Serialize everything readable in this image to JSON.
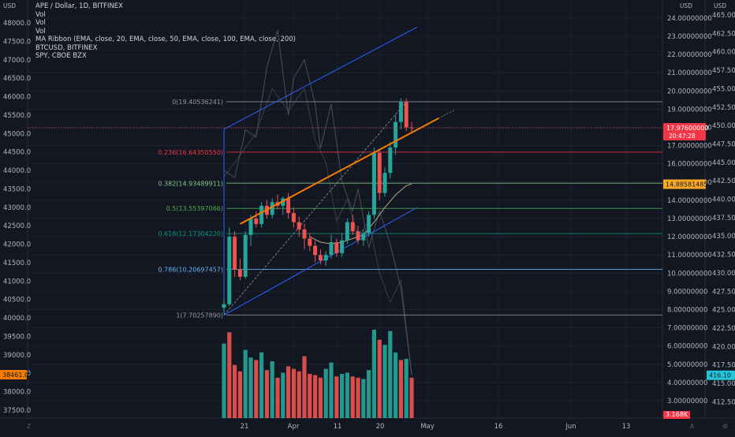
{
  "colors": {
    "background": "#131722",
    "grid": "#1e222d",
    "axis_text": "#b2b5be",
    "candle_up": "#26a69a",
    "candle_down": "#ef5350",
    "volume_up": "#26a69a",
    "volume_down": "#ef5350",
    "channel": "#2962ff",
    "trendline": "#f57c00",
    "ma": "#c9b38a",
    "overlay": "#787b86",
    "price_badge": "#f23645",
    "btc_badge": "#f57c00",
    "spy_badge": "#2962ff",
    "vol_badge": "#26c6da",
    "fib_0": "#9598a1",
    "fib_0236": "#f23645",
    "fib_0382": "#81c784",
    "fib_05": "#4caf50",
    "fib_0618": "#089981",
    "fib_0786": "#64b5f6",
    "fib_1": "#9598a1"
  },
  "legend": {
    "main": "APE / Dollar, 1D, BITFINEX",
    "vol1": "Vol",
    "vol2": "Vol",
    "vol3": "Vol",
    "ma_ribbon": "MA Ribbon (EMA, close, 20, EMA, close, 50, EMA, close, 100, EMA, close, 200)",
    "btc": "BTCUSD, BITFINEX",
    "spy": "SPY, CBOE BZX"
  },
  "chart_data": {
    "type": "candlestick",
    "symbol": "APE / Dollar",
    "interval": "1D",
    "exchange": "BITFINEX",
    "x_ticks": [
      "21",
      "Apr",
      "11",
      "20",
      "May",
      "16",
      "Jun",
      "13"
    ],
    "left_axis": {
      "currency": "USD",
      "ticks": [
        "48000.0",
        "47500.0",
        "47000.0",
        "46500.0",
        "46000.0",
        "45500.0",
        "45000.0",
        "44500.0",
        "44000.0",
        "43500.0",
        "43000.0",
        "42500.0",
        "42000.0",
        "41500.0",
        "41000.0",
        "40500.0",
        "40000.0",
        "39500.0",
        "39000.0",
        "38500.0",
        "38000.0",
        "37500.0"
      ],
      "range": [
        37200,
        48400
      ]
    },
    "right_axis_ape": {
      "currency": "USD",
      "ticks": [
        "24.00000000",
        "23.00000000",
        "22.00000000",
        "21.00000000",
        "20.00000000",
        "19.00000000",
        "18.00000000",
        "17.00000000",
        "16.00000000",
        "15.00000000",
        "14.00000000",
        "13.00000000",
        "12.00000000",
        "11.00000000",
        "10.00000000",
        "9.00000000",
        "8.00000000",
        "7.00000000",
        "6.00000000",
        "5.00000000",
        "4.00000000",
        "3.00000000"
      ],
      "range": [
        2.7,
        24.3
      ]
    },
    "right_axis_spy": {
      "currency": "USD",
      "ticks": [
        "465.00",
        "462.50",
        "460.00",
        "457.50",
        "455.00",
        "452.50",
        "450.00",
        "447.50",
        "445.00",
        "442.50",
        "440.00",
        "437.50",
        "435.00",
        "432.50",
        "430.00",
        "427.50",
        "425.00",
        "422.50",
        "420.00",
        "417.50",
        "415.00",
        "412.50"
      ],
      "range": [
        411.5,
        466.5
      ]
    },
    "badges": {
      "ape_last": "17.97600000",
      "countdown": "20:47:28",
      "ma_value": "14.88581485",
      "btc_last": "38461.0",
      "spy_last": "416.10",
      "volume_last": "3.168K"
    },
    "fib_levels": [
      {
        "ratio": "0",
        "price": 19.40536241,
        "label": "0(19.40536241)"
      },
      {
        "ratio": "0.236",
        "price": 16.6435055,
        "label": "0.236(16.64350550)"
      },
      {
        "ratio": "0.382",
        "price": 14.93489911,
        "label": "0.382(14.93489911)"
      },
      {
        "ratio": "0.5",
        "price": 13.55397066,
        "label": "0.5(13.55397066)"
      },
      {
        "ratio": "0.618",
        "price": 12.1730422,
        "label": "0.618(12.17304220)"
      },
      {
        "ratio": "0.786",
        "price": 10.20697457,
        "label": "0.786(10.20697457)"
      },
      {
        "ratio": "1",
        "price": 7.7025789,
        "label": "1(7.70257890)"
      }
    ],
    "candles": [
      [
        8.1,
        8.6,
        7.8,
        8.3
      ],
      [
        8.3,
        12.5,
        8.2,
        12.0
      ],
      [
        12.0,
        12.3,
        9.8,
        10.2
      ],
      [
        10.2,
        10.8,
        9.6,
        9.8
      ],
      [
        9.8,
        12.3,
        9.7,
        12.1
      ],
      [
        12.1,
        13.2,
        11.5,
        13.0
      ],
      [
        13.0,
        13.4,
        12.5,
        12.7
      ],
      [
        12.7,
        13.9,
        12.5,
        13.7
      ],
      [
        13.7,
        14.0,
        13.0,
        13.2
      ],
      [
        13.2,
        14.1,
        13.0,
        13.9
      ],
      [
        13.9,
        14.3,
        13.5,
        13.7
      ],
      [
        13.7,
        14.2,
        13.2,
        14.1
      ],
      [
        14.1,
        14.4,
        13.0,
        13.3
      ],
      [
        13.3,
        13.6,
        12.5,
        12.8
      ],
      [
        12.8,
        13.1,
        12.0,
        12.4
      ],
      [
        12.4,
        12.7,
        11.3,
        11.9
      ],
      [
        11.9,
        12.2,
        11.2,
        11.5
      ],
      [
        11.5,
        11.8,
        10.6,
        11.0
      ],
      [
        11.0,
        11.3,
        10.5,
        10.7
      ],
      [
        10.7,
        11.2,
        10.4,
        11.0
      ],
      [
        11.0,
        12.1,
        10.8,
        11.7
      ],
      [
        11.7,
        11.9,
        10.9,
        11.1
      ],
      [
        11.1,
        12.2,
        10.9,
        11.8
      ],
      [
        11.8,
        13.0,
        11.6,
        12.8
      ],
      [
        12.8,
        13.2,
        12.1,
        12.3
      ],
      [
        12.3,
        12.6,
        11.6,
        11.8
      ],
      [
        11.8,
        12.4,
        11.5,
        12.2
      ],
      [
        12.2,
        13.4,
        12.0,
        13.2
      ],
      [
        13.2,
        16.9,
        13.0,
        16.6
      ],
      [
        16.6,
        16.8,
        14.0,
        14.4
      ],
      [
        14.4,
        15.8,
        14.2,
        15.5
      ],
      [
        15.5,
        17.2,
        15.2,
        16.9
      ],
      [
        16.9,
        18.7,
        16.5,
        18.3
      ],
      [
        18.3,
        19.6,
        17.9,
        19.4
      ],
      [
        19.4,
        19.6,
        17.8,
        18.0
      ],
      [
        18.0,
        18.3,
        17.7,
        17.976
      ]
    ],
    "volumes": [
      {
        "v": 5.9,
        "up": true
      },
      {
        "v": 6.8,
        "up": false
      },
      {
        "v": 4.2,
        "up": false
      },
      {
        "v": 3.7,
        "up": false
      },
      {
        "v": 5.4,
        "up": true
      },
      {
        "v": 4.8,
        "up": true
      },
      {
        "v": 4.6,
        "up": false
      },
      {
        "v": 5.2,
        "up": true
      },
      {
        "v": 3.8,
        "up": false
      },
      {
        "v": 4.5,
        "up": true
      },
      {
        "v": 3.2,
        "up": false
      },
      {
        "v": 3.6,
        "up": true
      },
      {
        "v": 4.1,
        "up": false
      },
      {
        "v": 3.9,
        "up": false
      },
      {
        "v": 3.7,
        "up": false
      },
      {
        "v": 4.9,
        "up": false
      },
      {
        "v": 3.5,
        "up": false
      },
      {
        "v": 3.4,
        "up": false
      },
      {
        "v": 3.2,
        "up": false
      },
      {
        "v": 3.9,
        "up": true
      },
      {
        "v": 4.4,
        "up": true
      },
      {
        "v": 3.3,
        "up": false
      },
      {
        "v": 3.5,
        "up": true
      },
      {
        "v": 3.6,
        "up": true
      },
      {
        "v": 3.3,
        "up": false
      },
      {
        "v": 3.2,
        "up": false
      },
      {
        "v": 3.1,
        "up": true
      },
      {
        "v": 3.8,
        "up": true
      },
      {
        "v": 7.0,
        "up": true
      },
      {
        "v": 6.2,
        "up": false
      },
      {
        "v": 5.8,
        "up": true
      },
      {
        "v": 6.9,
        "up": true
      },
      {
        "v": 5.2,
        "up": true
      },
      {
        "v": 4.6,
        "up": false
      },
      {
        "v": 4.7,
        "up": true
      },
      {
        "v": 3.2,
        "up": false
      }
    ],
    "ema20": [
      [
        16,
        12.0
      ],
      [
        18,
        11.7
      ],
      [
        20,
        11.6
      ],
      [
        22,
        11.7
      ],
      [
        24,
        11.9
      ],
      [
        26,
        12.1
      ],
      [
        28,
        12.8
      ],
      [
        30,
        13.6
      ],
      [
        32,
        14.3
      ],
      [
        34,
        14.8
      ],
      [
        35,
        14.9
      ]
    ],
    "btc_overlay": [
      [
        0,
        44000
      ],
      [
        2,
        43800
      ],
      [
        4,
        45100
      ],
      [
        6,
        44900
      ],
      [
        8,
        46800
      ],
      [
        10,
        47800
      ],
      [
        12,
        45500
      ],
      [
        13,
        46500
      ],
      [
        15,
        47000
      ],
      [
        17,
        45800
      ],
      [
        18,
        44600
      ],
      [
        20,
        45800
      ],
      [
        22,
        43700
      ],
      [
        24,
        42900
      ],
      [
        25,
        43500
      ],
      [
        27,
        41900
      ],
      [
        29,
        42900
      ],
      [
        31,
        42000
      ],
      [
        33,
        40800
      ],
      [
        35,
        38461
      ]
    ],
    "spy_overlay": [
      [
        0,
        443
      ],
      [
        3,
        446
      ],
      [
        6,
        449
      ],
      [
        9,
        455
      ],
      [
        12,
        452
      ],
      [
        15,
        455
      ],
      [
        17,
        448
      ],
      [
        19,
        445
      ],
      [
        21,
        437
      ],
      [
        23,
        440
      ],
      [
        25,
        435
      ],
      [
        27,
        437
      ],
      [
        29,
        430
      ],
      [
        31,
        426
      ],
      [
        33,
        429
      ],
      [
        35,
        416.1
      ]
    ],
    "channel_upper": [
      [
        0,
        17.9
      ],
      [
        36,
        23.5
      ]
    ],
    "channel_lower": [
      [
        0,
        7.7
      ],
      [
        36,
        13.6
      ]
    ],
    "trendline": [
      [
        3,
        12.7
      ],
      [
        36,
        17.9
      ]
    ]
  }
}
